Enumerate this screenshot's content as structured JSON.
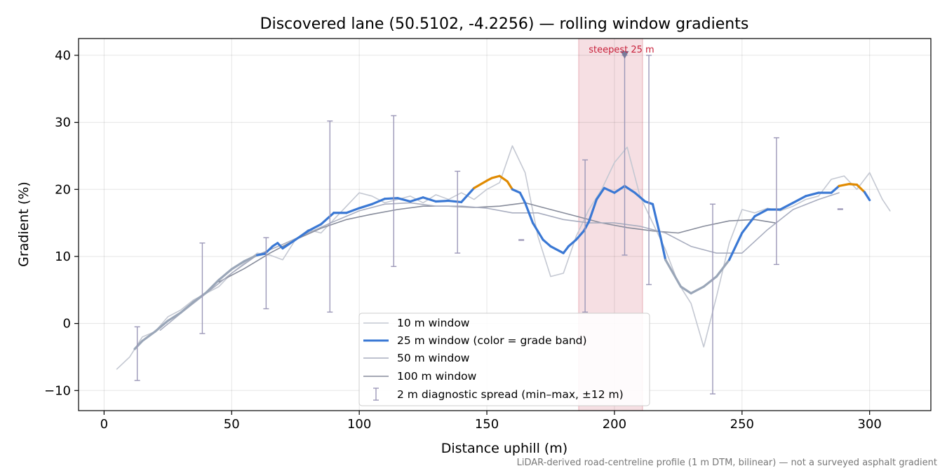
{
  "chart_data": {
    "type": "line",
    "title": "Discovered lane (50.5102, -4.2256) — rolling window gradients",
    "xlabel": "Distance uphill (m)",
    "ylabel": "Gradient (%)",
    "xlim": [
      -10,
      324
    ],
    "ylim": [
      -13,
      42.5
    ],
    "xticks": [
      0,
      50,
      100,
      150,
      200,
      250,
      300
    ],
    "yticks": [
      -10,
      0,
      10,
      20,
      30,
      40
    ],
    "tick_labels": {
      "x": [
        "0",
        "50",
        "100",
        "150",
        "200",
        "250",
        "300"
      ],
      "y": [
        "−10",
        "0",
        "10",
        "20",
        "30",
        "40"
      ]
    },
    "grid": true,
    "legend_position": "bottom-center",
    "footnote": "LiDAR-derived road-centreline profile (1 m DTM, bilinear) — not a surveyed asphalt gradient",
    "highlight": {
      "x_start": 186,
      "x_end": 211,
      "label": "steepest 25 m",
      "marker": {
        "x": 204,
        "y": 40
      },
      "color": "#e8b0b8"
    },
    "grade_band_colors": {
      "below_10": "#9aa6b8",
      "10_to_20": "#3a78d4",
      "above_20": "#e08a00"
    },
    "series": [
      {
        "name": "10 m window",
        "color": "#c4c8d2",
        "x": [
          5,
          10,
          15,
          20,
          25,
          30,
          35,
          40,
          45,
          50,
          55,
          60,
          65,
          70,
          75,
          80,
          85,
          90,
          95,
          100,
          105,
          110,
          115,
          120,
          125,
          130,
          135,
          140,
          145,
          150,
          155,
          160,
          165,
          170,
          175,
          180,
          185,
          190,
          195,
          200,
          205,
          210,
          215,
          220,
          225,
          230,
          235,
          240,
          245,
          250,
          255,
          260,
          265,
          270,
          275,
          280,
          285,
          290,
          295,
          300,
          305,
          308
        ],
        "y": [
          -6.8,
          -5,
          -2,
          -1.2,
          1,
          2,
          3.5,
          4.5,
          5.5,
          7.5,
          9,
          10.5,
          10.2,
          9.5,
          12.5,
          14,
          13.5,
          15.5,
          17.5,
          19.5,
          19,
          18,
          18.5,
          19,
          18,
          19.2,
          18.5,
          19.5,
          18.5,
          20,
          21,
          26.5,
          22.5,
          13,
          7,
          7.5,
          13,
          17,
          20,
          24,
          26.3,
          19,
          15,
          11,
          6,
          3,
          -3.5,
          4,
          12,
          17,
          16.5,
          17.2,
          16.8,
          17.5,
          18.5,
          19,
          21.5,
          22,
          20,
          22.5,
          18.5,
          16.8
        ]
      },
      {
        "name": "25 m window (color = grade band)",
        "color": "#3a78d4",
        "x": [
          12,
          15,
          20,
          25,
          30,
          35,
          40,
          45,
          50,
          55,
          60,
          63,
          66,
          68,
          70,
          75,
          80,
          85,
          90,
          95,
          100,
          105,
          110,
          115,
          120,
          125,
          130,
          135,
          140,
          145,
          150,
          152,
          155,
          158,
          160,
          163,
          165,
          168,
          172,
          175,
          180,
          182,
          185,
          188,
          190,
          193,
          196,
          200,
          204,
          208,
          212,
          215,
          218,
          220,
          223,
          226,
          230,
          235,
          240,
          245,
          250,
          255,
          260,
          265,
          270,
          275,
          280,
          285,
          288,
          292,
          295,
          298,
          300
        ],
        "y": [
          -3.8,
          -2.6,
          -1.2,
          0.4,
          1.6,
          3.2,
          4.6,
          6.5,
          8.1,
          9.3,
          10.2,
          10.4,
          11.5,
          12,
          11.2,
          12.5,
          13.8,
          14.8,
          16.5,
          16.5,
          17.2,
          17.8,
          18.6,
          18.7,
          18.2,
          18.8,
          18.2,
          18.3,
          18.1,
          20.2,
          21.3,
          21.7,
          22,
          21.2,
          20,
          19.5,
          18,
          15,
          12.5,
          11.5,
          10.5,
          11.5,
          12.5,
          13.8,
          15.2,
          18.5,
          20.2,
          19.5,
          20.5,
          19.5,
          18.2,
          17.8,
          13,
          9.5,
          7.5,
          5.5,
          4.5,
          5.5,
          7,
          9.5,
          13.5,
          16,
          17,
          17,
          18,
          19,
          19.5,
          19.5,
          20.5,
          20.8,
          20.7,
          19.6,
          18.4
        ]
      },
      {
        "name": "50 m window",
        "color": "#a8adbf",
        "x": [
          22,
          30,
          40,
          50,
          60,
          70,
          80,
          90,
          100,
          110,
          120,
          130,
          140,
          150,
          160,
          170,
          180,
          190,
          200,
          210,
          220,
          230,
          240,
          250,
          260,
          270,
          280,
          288
        ],
        "y": [
          -1,
          1.5,
          4.5,
          7.5,
          10.2,
          11.8,
          13.5,
          15.2,
          16.8,
          17.8,
          18,
          17.5,
          17.5,
          17.2,
          16.5,
          16.5,
          15.5,
          15,
          15,
          14.5,
          13.5,
          11.5,
          10.5,
          10.5,
          14,
          17,
          18.5,
          19.5
        ]
      },
      {
        "name": "100 m window",
        "color": "#878c9b",
        "x": [
          45,
          55,
          65,
          75,
          85,
          95,
          105,
          115,
          125,
          135,
          145,
          155,
          165,
          175,
          185,
          195,
          205,
          215,
          225,
          235,
          245,
          255,
          263
        ],
        "y": [
          6.2,
          8.2,
          10.5,
          12.5,
          14.2,
          15.5,
          16.3,
          17,
          17.5,
          17.5,
          17.3,
          17.5,
          18,
          17,
          16,
          15,
          14.3,
          13.8,
          13.5,
          14.5,
          15.3,
          15.5,
          15
        ]
      },
      {
        "name": "2 m diagnostic spread (min–max, ±12 m)",
        "color": "#9c98b8",
        "type": "errorbar",
        "points": [
          {
            "x": 13,
            "min": -8.5,
            "max": -0.5
          },
          {
            "x": 38.5,
            "min": -1.5,
            "max": 12
          },
          {
            "x": 63.5,
            "min": 2.2,
            "max": 12.8
          },
          {
            "x": 88.5,
            "min": 1.7,
            "max": 30.2
          },
          {
            "x": 113.5,
            "min": 8.5,
            "max": 31
          },
          {
            "x": 138.5,
            "min": 10.5,
            "max": 22.7
          },
          {
            "x": 163.5,
            "min": 12.4,
            "max": 12.5
          },
          {
            "x": 188.5,
            "min": 1.7,
            "max": 24.4
          },
          {
            "x": 204,
            "min": 10.2,
            "max": 40
          },
          {
            "x": 213.5,
            "min": 5.8,
            "max": 40
          },
          {
            "x": 238.5,
            "min": -10.5,
            "max": 17.8
          },
          {
            "x": 263.5,
            "min": 8.8,
            "max": 27.7
          },
          {
            "x": 288.5,
            "min": 17,
            "max": 17.1
          }
        ]
      }
    ]
  }
}
